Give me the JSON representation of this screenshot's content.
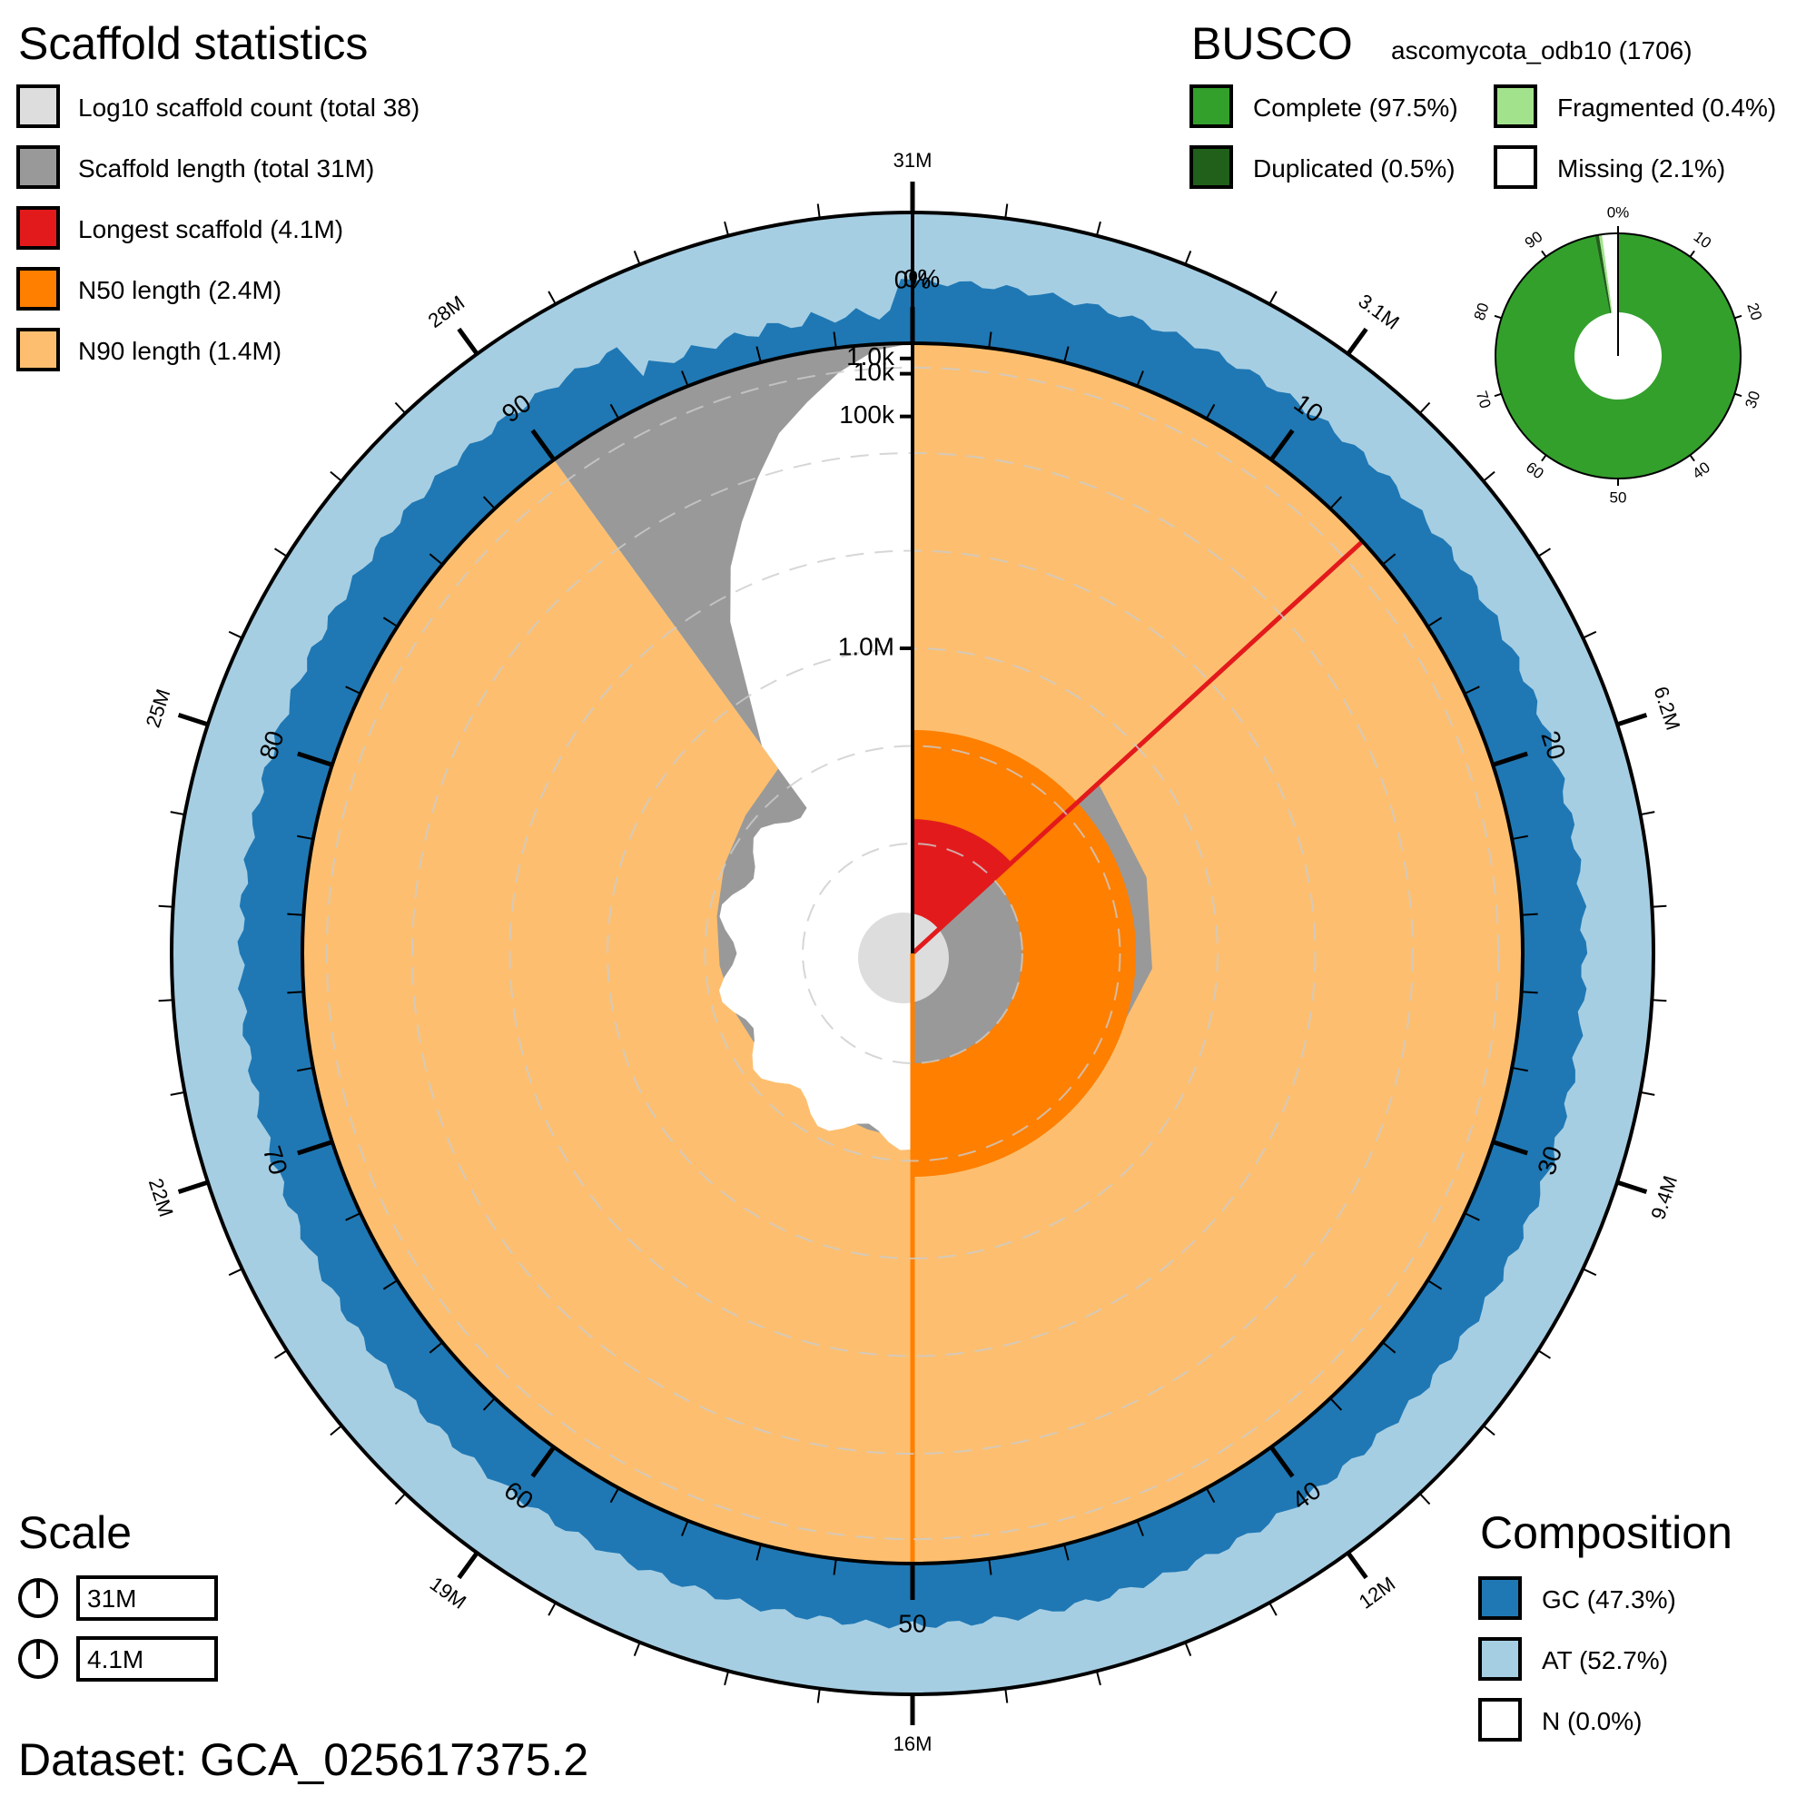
{
  "chart_data": {
    "type": "snail",
    "dataset_label": "Dataset: GCA_025617375.2",
    "scaffold_stats": {
      "title": "Scaffold statistics",
      "legend": [
        {
          "label": "Log10 scaffold count (total 38)",
          "color": "#dddddd"
        },
        {
          "label": "Scaffold length (total 31M)",
          "color": "#999999"
        },
        {
          "label": "Longest scaffold (4.1M)",
          "color": "#e31a1c"
        },
        {
          "label": "N50 length (2.4M)",
          "color": "#ff7f00"
        },
        {
          "label": "N90 length (1.4M)",
          "color": "#fdbf6f"
        }
      ],
      "total_length_mb": 31,
      "longest_mb": 4.1,
      "n50_mb": 2.4,
      "n90_mb": 1.4,
      "longest_pct": 13.2,
      "n50_pct": 50,
      "n90_pct": 90,
      "percent_ticks": [
        "10",
        "20",
        "30",
        "40",
        "50",
        "60",
        "70",
        "80",
        "90",
        "0%"
      ],
      "length_ticks": [
        "31M",
        "3.1M",
        "6.2M",
        "9.4M",
        "12M",
        "16M",
        "19M",
        "22M",
        "25M",
        "28M"
      ],
      "radial_ticks": [
        "1.0k",
        "10k",
        "100k",
        "1.0M"
      ],
      "length_profile_pct": [
        0,
        0.8,
        1.5,
        2.5,
        4,
        5,
        6,
        7.5,
        8.5,
        9.5,
        11,
        12.2,
        13.2
      ],
      "length_profile_mb": [
        4.1,
        3.9,
        3.7,
        3.4,
        3.2,
        3.0,
        2.9,
        2.8,
        2.7,
        2.6,
        2.5,
        2.45,
        2.4
      ]
    },
    "busco": {
      "title": "BUSCO",
      "lineage": "ascomycota_odb10 (1706)",
      "legend": [
        {
          "label": "Complete (97.5%)",
          "color": "#33a02c"
        },
        {
          "label": "Fragmented (0.4%)",
          "color": "#a3e28c"
        },
        {
          "label": "Duplicated (0.5%)",
          "color": "#20601a"
        },
        {
          "label": "Missing (2.1%)",
          "color": "#ffffff"
        }
      ],
      "complete": 97.5,
      "duplicated": 0.5,
      "fragmented": 0.4,
      "missing": 2.1,
      "ticks": [
        "0%",
        "10",
        "20",
        "30",
        "40",
        "50",
        "60",
        "70",
        "80",
        "90"
      ]
    },
    "scale": {
      "title": "Scale",
      "items": [
        "31M",
        "4.1M"
      ]
    },
    "composition": {
      "title": "Composition",
      "legend": [
        {
          "label": "GC (47.3%)",
          "color": "#1f78b4"
        },
        {
          "label": "AT (52.7%)",
          "color": "#a6cee3"
        },
        {
          "label": "N (0.0%)",
          "color": "#ffffff"
        }
      ],
      "gc": 47.3,
      "at": 52.7,
      "n": 0.0
    }
  }
}
